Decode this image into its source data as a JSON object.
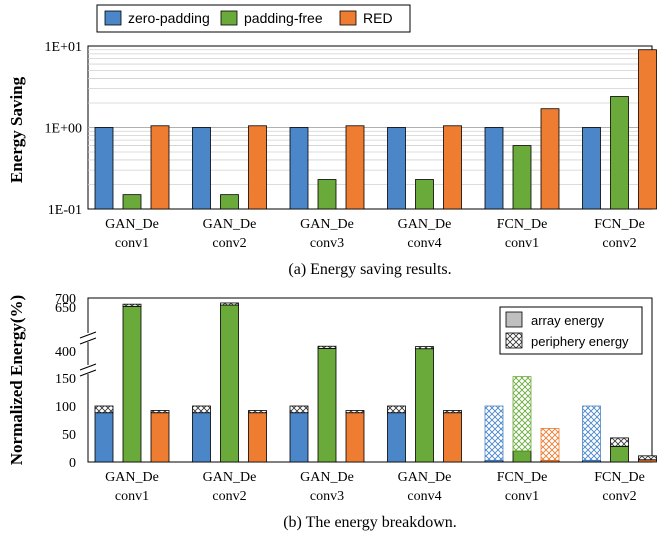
{
  "colors": {
    "zero_padding": "#4a86c8",
    "padding_free": "#6aaa3a",
    "red": "#ee7d31",
    "array": "#bfbfbf"
  },
  "chart_data": [
    {
      "type": "bar",
      "scale": "log",
      "title": "(a) Energy saving results.",
      "ylabel": "Energy Saving",
      "ylim": [
        0.1,
        10
      ],
      "yticks": [
        "1E-01",
        "1E+00",
        "1E+01"
      ],
      "categories": [
        [
          "GAN_De",
          "conv1"
        ],
        [
          "GAN_De",
          "conv2"
        ],
        [
          "GAN_De",
          "conv3"
        ],
        [
          "GAN_De",
          "conv4"
        ],
        [
          "FCN_De",
          "conv1"
        ],
        [
          "FCN_De",
          "conv2"
        ]
      ],
      "series": [
        {
          "name": "zero-padding",
          "values": [
            1,
            1,
            1,
            1,
            1,
            1
          ]
        },
        {
          "name": "padding-free",
          "values": [
            0.15,
            0.15,
            0.23,
            0.23,
            0.6,
            2.4
          ]
        },
        {
          "name": "RED",
          "values": [
            1.05,
            1.05,
            1.05,
            1.05,
            1.7,
            9
          ]
        }
      ]
    },
    {
      "type": "stacked-bar",
      "title": "(b) The energy breakdown.",
      "ylabel": "Normalized Energy(%)",
      "yticks": [
        "0",
        "50",
        "100",
        "150",
        "400",
        "650",
        "700"
      ],
      "axis_breaks": true,
      "categories": [
        [
          "GAN_De",
          "conv1"
        ],
        [
          "GAN_De",
          "conv2"
        ],
        [
          "GAN_De",
          "conv3"
        ],
        [
          "GAN_De",
          "conv4"
        ],
        [
          "FCN_De",
          "conv1"
        ],
        [
          "FCN_De",
          "conv2"
        ]
      ],
      "stack_legend": [
        "array energy",
        "periphery energy"
      ],
      "series": [
        {
          "name": "zero-padding",
          "array": [
            88,
            88,
            88,
            88,
            3,
            3
          ],
          "periphery": [
            12,
            12,
            12,
            12,
            97,
            97
          ]
        },
        {
          "name": "padding-free",
          "array": [
            653,
            660,
            415,
            413,
            20,
            28
          ],
          "periphery": [
            12,
            12,
            12,
            12,
            143,
            15
          ]
        },
        {
          "name": "RED",
          "array": [
            88,
            88,
            88,
            88,
            3,
            4
          ],
          "periphery": [
            4,
            4,
            4,
            4,
            57,
            7
          ]
        }
      ]
    }
  ]
}
